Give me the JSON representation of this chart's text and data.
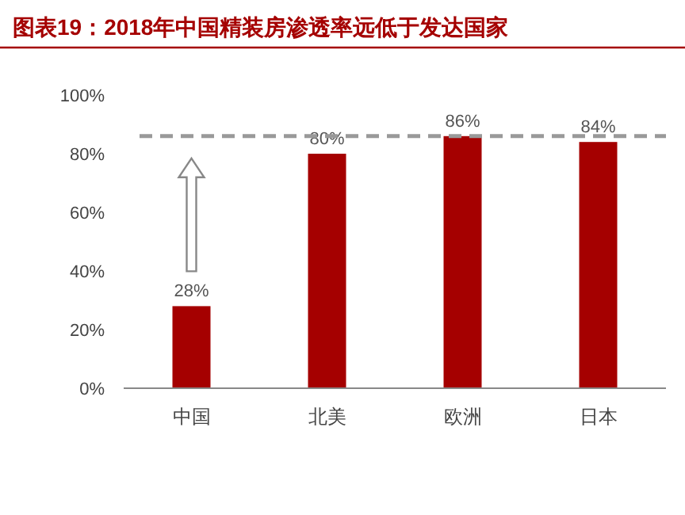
{
  "chart_data": {
    "type": "bar",
    "title": "图表19：2018年中国精装房渗透率远低于发达国家",
    "categories": [
      "中国",
      "北美",
      "欧洲",
      "日本"
    ],
    "values": [
      28,
      80,
      86,
      84
    ],
    "color": "#a50000",
    "data_labels": true,
    "value_labels": [
      "28%",
      "80%",
      "86%",
      "84%"
    ],
    "ylim": [
      0,
      100
    ],
    "yticks": [
      {
        "value": 0,
        "label": "0%"
      },
      {
        "value": 20,
        "label": "20%"
      },
      {
        "value": 40,
        "label": "40%"
      },
      {
        "value": 60,
        "label": "60%"
      },
      {
        "value": 80,
        "label": "80%"
      },
      {
        "value": 100,
        "label": "100%"
      }
    ],
    "ref_lines": [
      {
        "axis": "y",
        "value": 86,
        "color": "#999999",
        "line_style": "dashed"
      }
    ],
    "grid": false
  }
}
